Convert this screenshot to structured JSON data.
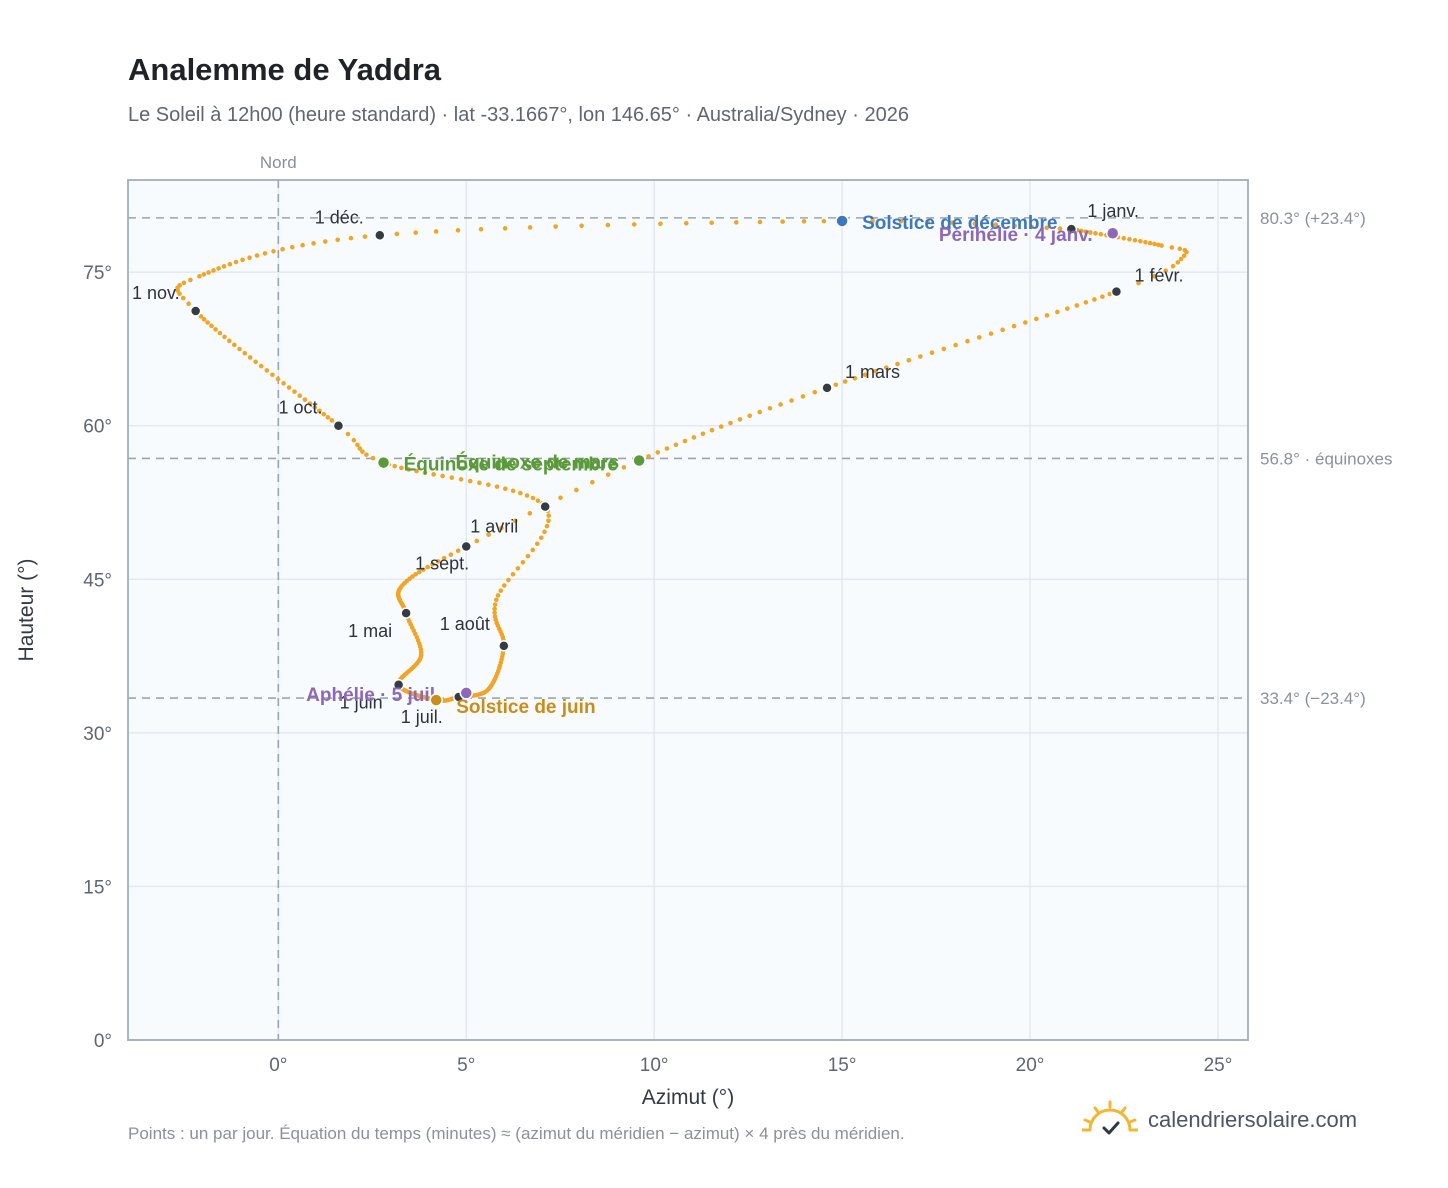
{
  "header": {
    "title": "Analemme de Yaddra",
    "subtitle": "Le Soleil à 12h00 (heure standard) · lat -33.1667°, lon 146.65° · Australia/Sydney · 2026"
  },
  "footer": {
    "note": "Points : un par jour. Équation du temps (minutes) ≈ (azimut du méridien − azimut) × 4 près du méridien.",
    "brand": "calendriersolaire.com",
    "brand_icon": "sun-logo-icon"
  },
  "colors": {
    "curve": "#f0a527",
    "month_dot": "#333b44",
    "solstice_dec": "#3c78c0",
    "solstice_jun": "#c98d1a",
    "equinox": "#5a9a3a",
    "apsis": "#8e68b8",
    "reference": "#9aa5ae",
    "plot_bg": "#f8fbfd",
    "grid": "#e3e9ee",
    "frame": "#a3acb6"
  },
  "chart_data": {
    "type": "scatter",
    "xlabel": "Azimut (°)",
    "ylabel": "Hauteur (°)",
    "xlim": [
      -4,
      25.8
    ],
    "ylim": [
      0,
      84
    ],
    "grid": true,
    "x_ticks": [
      0,
      5,
      10,
      15,
      20,
      25
    ],
    "x_tick_labels": [
      "0°",
      "5°",
      "10°",
      "15°",
      "20°",
      "25°"
    ],
    "y_ticks": [
      0,
      15,
      30,
      45,
      60,
      75
    ],
    "y_tick_labels": [
      "0°",
      "15°",
      "30°",
      "45°",
      "60°",
      "75°"
    ],
    "vertical_reference": {
      "x": 0,
      "label": "Nord"
    },
    "horizontal_references": [
      {
        "y": 80.3,
        "label": "80.3° (+23.4°)"
      },
      {
        "y": 56.8,
        "label": "56.8° · équinoxes"
      },
      {
        "y": 33.4,
        "label": "33.4° (−23.4°)"
      }
    ],
    "monthly_markers": [
      {
        "label": "1 janv.",
        "azimuth": 21.1,
        "altitude": 79.2
      },
      {
        "label": "1 févr.",
        "azimuth": 22.3,
        "altitude": 73.1
      },
      {
        "label": "1 mars",
        "azimuth": 14.6,
        "altitude": 63.7
      },
      {
        "label": "1 avril",
        "azimuth": 5.0,
        "altitude": 48.2
      },
      {
        "label": "1 mai",
        "azimuth": 3.4,
        "altitude": 41.7
      },
      {
        "label": "1 juin",
        "azimuth": 3.2,
        "altitude": 34.7
      },
      {
        "label": "1 juil.",
        "azimuth": 4.8,
        "altitude": 33.5
      },
      {
        "label": "1 août",
        "azimuth": 6.0,
        "altitude": 38.5
      },
      {
        "label": "1 sept.",
        "azimuth": 7.1,
        "altitude": 52.1
      },
      {
        "label": "1 oct.",
        "azimuth": 1.6,
        "altitude": 60.0
      },
      {
        "label": "1 nov.",
        "azimuth": -2.2,
        "altitude": 71.2
      },
      {
        "label": "1 déc.",
        "azimuth": 2.7,
        "altitude": 78.6
      }
    ],
    "events": [
      {
        "label": "Solstice de décembre",
        "azimuth": 15.0,
        "altitude": 80.0,
        "kind": "solstice_dec"
      },
      {
        "label": "Périhélie · 4 janv.",
        "azimuth": 22.2,
        "altitude": 78.8,
        "kind": "apsis"
      },
      {
        "label": "Équinoxe de mars",
        "azimuth": 9.6,
        "altitude": 56.6,
        "kind": "equinox"
      },
      {
        "label": "Équinoxe de septembre",
        "azimuth": 2.8,
        "altitude": 56.4,
        "kind": "equinox"
      },
      {
        "label": "Aphélie · 5 juil.",
        "azimuth": 5.0,
        "altitude": 33.9,
        "kind": "apsis"
      },
      {
        "label": "Solstice de juin",
        "azimuth": 4.2,
        "altitude": 33.2,
        "kind": "solstice_jun"
      }
    ]
  }
}
